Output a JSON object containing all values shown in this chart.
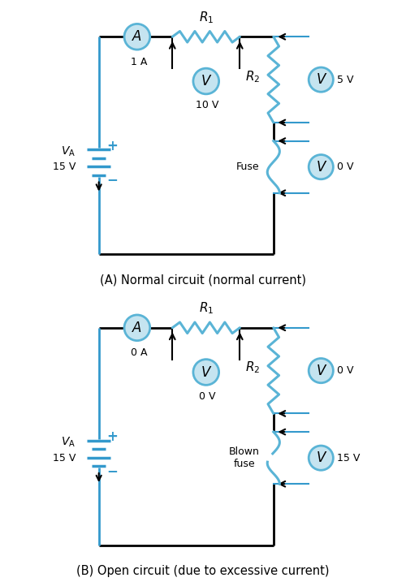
{
  "fig_width": 5.0,
  "fig_height": 7.17,
  "dpi": 100,
  "bg_color": "#ffffff",
  "line_color": "#000000",
  "blue_color": "#5ab4d6",
  "light_blue": "#c5e4f0",
  "circuit_line_color": "#3399cc",
  "caption_A": "(A) Normal circuit (normal current)",
  "caption_B": "(B) Open circuit (due to excessive current)",
  "circuit_A": {
    "ammeter_value": "1 A",
    "voltmeter1_value": "10 V",
    "voltmeter2_value": "5 V",
    "voltmeter3_value": "0 V",
    "battery_label": "15 V",
    "fuse_label": "Fuse",
    "is_open": false
  },
  "circuit_B": {
    "ammeter_value": "0 A",
    "voltmeter1_value": "0 V",
    "voltmeter2_value": "0 V",
    "voltmeter3_value": "15 V",
    "battery_label": "15 V",
    "fuse_label": "Blown\nfuse",
    "is_open": true
  }
}
